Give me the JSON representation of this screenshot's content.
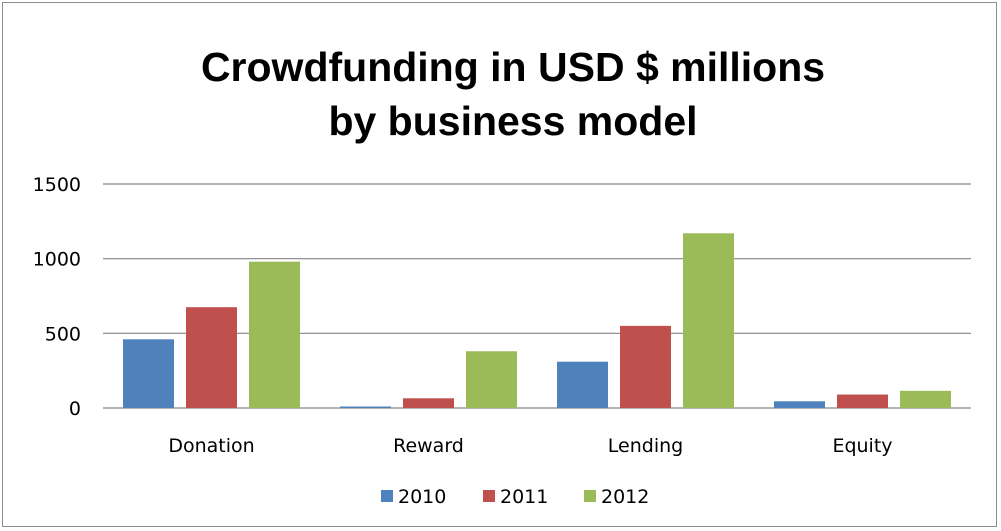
{
  "chart_data": {
    "type": "bar",
    "title_lines": [
      "Crowdfunding in USD $ millions",
      "by business model"
    ],
    "categories": [
      "Donation",
      "Reward",
      "Lending",
      "Equity"
    ],
    "series": [
      {
        "name": "2010",
        "color": "#4f81bd",
        "values": [
          460,
          10,
          310,
          45
        ]
      },
      {
        "name": "2011",
        "color": "#c0504d",
        "values": [
          675,
          65,
          550,
          90
        ]
      },
      {
        "name": "2012",
        "color": "#9bbb59",
        "values": [
          980,
          380,
          1170,
          115
        ]
      }
    ],
    "ylim": [
      0,
      1500
    ],
    "yticks": [
      0,
      500,
      1000,
      1500
    ],
    "grid": true,
    "legend": "bottom",
    "gridline_color": "#868686"
  }
}
